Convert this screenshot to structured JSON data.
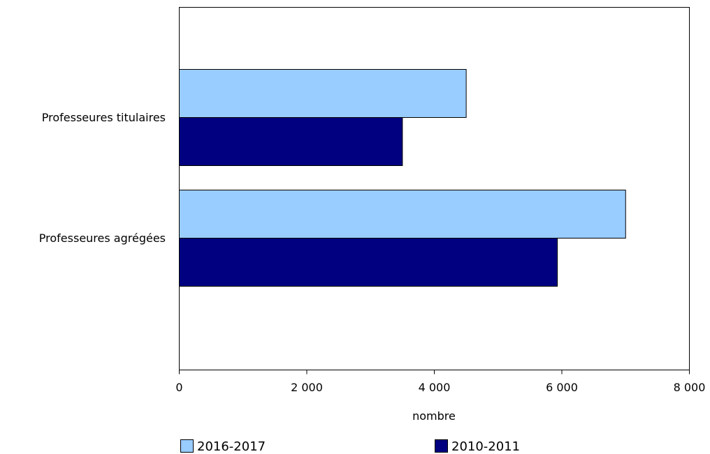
{
  "chart_data": {
    "type": "bar",
    "orientation": "horizontal",
    "categories": [
      "Professeures titulaires",
      "Professeures agrégées"
    ],
    "series": [
      {
        "name": "2016-2017",
        "values": [
          4500,
          7000
        ],
        "color": "#99ccff"
      },
      {
        "name": "2010-2011",
        "values": [
          3500,
          5930
        ],
        "color": "#000080"
      }
    ],
    "xlabel": "nombre",
    "xlim": [
      0,
      8000
    ],
    "xticks": [
      {
        "value": 0,
        "label": "0"
      },
      {
        "value": 2000,
        "label": "2 000"
      },
      {
        "value": 4000,
        "label": "4 000"
      },
      {
        "value": 6000,
        "label": "6 000"
      },
      {
        "value": 8000,
        "label": "8 000"
      }
    ],
    "grid": false,
    "legend_position": "bottom"
  }
}
